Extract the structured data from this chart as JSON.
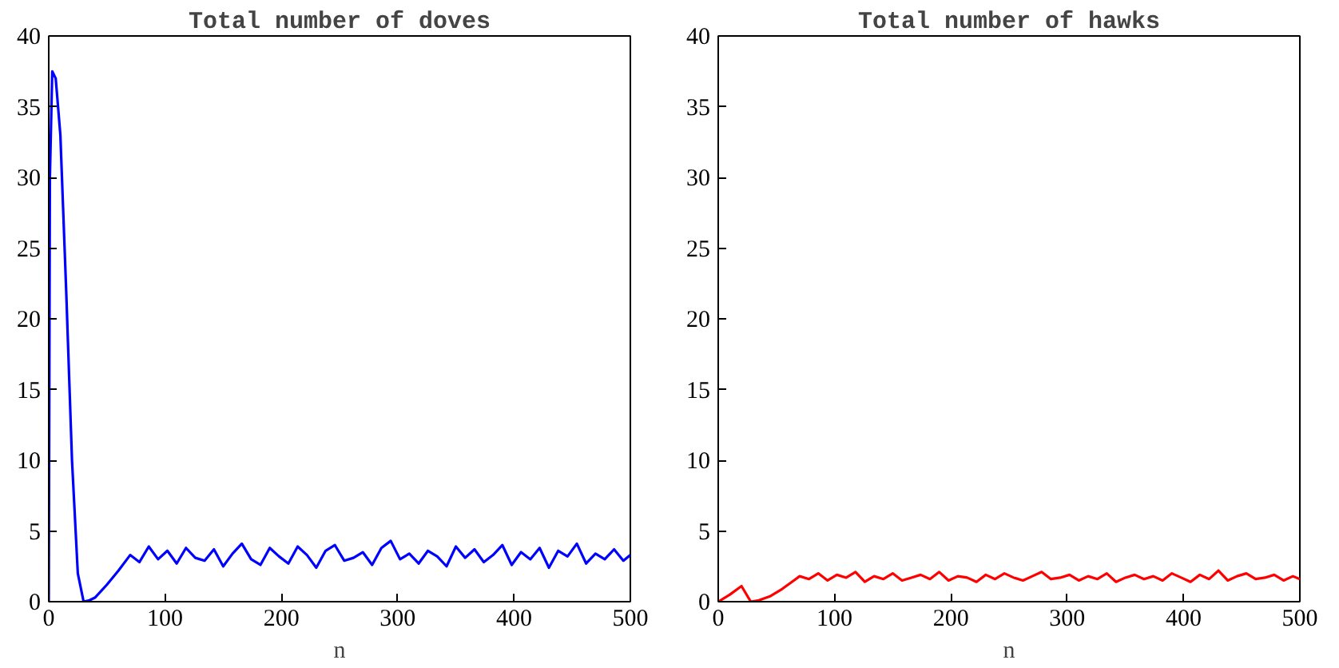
{
  "chart_data": [
    {
      "type": "line",
      "title": "Total number of doves",
      "xlabel": "n",
      "xlim": [
        0,
        500
      ],
      "ylim": [
        0,
        40
      ],
      "xticks": [
        0,
        100,
        200,
        300,
        400,
        500
      ],
      "yticks": [
        0,
        5,
        10,
        15,
        20,
        25,
        30,
        35,
        40
      ],
      "x": [
        0,
        1,
        3,
        6,
        10,
        15,
        20,
        25,
        30,
        35,
        40,
        50,
        60,
        70,
        78,
        86,
        94,
        102,
        110,
        118,
        126,
        134,
        142,
        150,
        158,
        166,
        174,
        182,
        190,
        198,
        206,
        214,
        222,
        230,
        238,
        246,
        254,
        262,
        270,
        278,
        286,
        294,
        302,
        310,
        318,
        326,
        334,
        342,
        350,
        358,
        366,
        374,
        382,
        390,
        398,
        406,
        414,
        422,
        430,
        438,
        446,
        454,
        462,
        470,
        478,
        486,
        494,
        500
      ],
      "series": [
        {
          "color": "#0000ff",
          "values": [
            0,
            30,
            37.5,
            37,
            33,
            22,
            10,
            2,
            0,
            0.1,
            0.3,
            1.2,
            2.2,
            3.3,
            2.8,
            3.9,
            3.0,
            3.6,
            2.7,
            3.8,
            3.1,
            2.9,
            3.7,
            2.5,
            3.4,
            4.1,
            3.0,
            2.6,
            3.8,
            3.2,
            2.7,
            3.9,
            3.3,
            2.4,
            3.6,
            4.0,
            2.9,
            3.1,
            3.5,
            2.6,
            3.8,
            4.3,
            3.0,
            3.4,
            2.7,
            3.6,
            3.2,
            2.5,
            3.9,
            3.1,
            3.7,
            2.8,
            3.3,
            4.0,
            2.6,
            3.5,
            3.0,
            3.8,
            2.4,
            3.6,
            3.2,
            4.1,
            2.7,
            3.4,
            3.0,
            3.7,
            2.9,
            3.3
          ]
        }
      ]
    },
    {
      "type": "line",
      "title": "Total number of hawks",
      "xlabel": "n",
      "xlim": [
        0,
        500
      ],
      "ylim": [
        0,
        40
      ],
      "xticks": [
        0,
        100,
        200,
        300,
        400,
        500
      ],
      "yticks": [
        0,
        5,
        10,
        15,
        20,
        25,
        30,
        35,
        40
      ],
      "x": [
        0,
        10,
        20,
        28,
        35,
        45,
        55,
        65,
        70,
        78,
        86,
        94,
        102,
        110,
        118,
        126,
        134,
        142,
        150,
        158,
        166,
        174,
        182,
        190,
        198,
        206,
        214,
        222,
        230,
        238,
        246,
        254,
        262,
        270,
        278,
        286,
        294,
        302,
        310,
        318,
        326,
        334,
        342,
        350,
        358,
        366,
        374,
        382,
        390,
        398,
        406,
        414,
        422,
        430,
        438,
        446,
        454,
        462,
        470,
        478,
        486,
        494,
        500
      ],
      "series": [
        {
          "color": "#ff0000",
          "values": [
            0,
            0.5,
            1.1,
            0,
            0.1,
            0.4,
            0.9,
            1.5,
            1.8,
            1.6,
            2.0,
            1.5,
            1.9,
            1.7,
            2.1,
            1.4,
            1.8,
            1.6,
            2.0,
            1.5,
            1.7,
            1.9,
            1.6,
            2.1,
            1.5,
            1.8,
            1.7,
            1.4,
            1.9,
            1.6,
            2.0,
            1.7,
            1.5,
            1.8,
            2.1,
            1.6,
            1.7,
            1.9,
            1.5,
            1.8,
            1.6,
            2.0,
            1.4,
            1.7,
            1.9,
            1.6,
            1.8,
            1.5,
            2.0,
            1.7,
            1.4,
            1.9,
            1.6,
            2.2,
            1.5,
            1.8,
            2.0,
            1.6,
            1.7,
            1.9,
            1.5,
            1.8,
            1.6
          ]
        }
      ]
    }
  ]
}
